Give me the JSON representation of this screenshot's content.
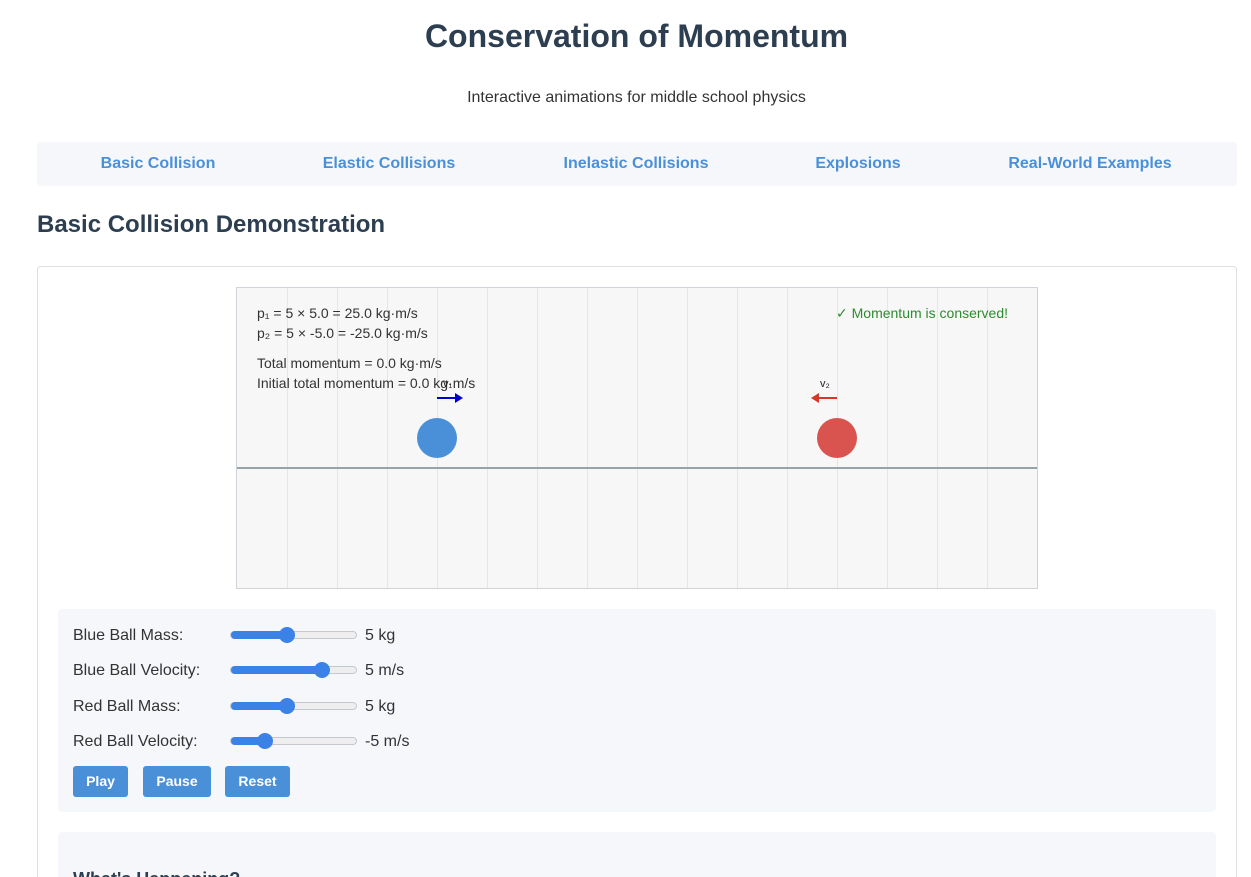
{
  "header": {
    "title": "Conservation of Momentum",
    "subtitle": "Interactive animations for middle school physics"
  },
  "nav": {
    "items": [
      {
        "label": "Basic Collision"
      },
      {
        "label": "Elastic Collisions"
      },
      {
        "label": "Inelastic Collisions"
      },
      {
        "label": "Explosions"
      },
      {
        "label": "Real-World Examples"
      }
    ]
  },
  "section": {
    "heading": "Basic Collision Demonstration"
  },
  "simulation": {
    "p1_text": "p₁ = 5 × 5.0 = 25.0 kg·m/s",
    "p2_text": "p₂ = 5 × -5.0 = -25.0 kg·m/s",
    "total_text": "Total momentum = 0.0 kg·m/s",
    "initial_total_text": "Initial total momentum = 0.0 kg·m/s",
    "status_text": "✓ Momentum is conserved!",
    "v1_label": "v₁",
    "v2_label": "v₂",
    "colors": {
      "blue_ball": "#4a90d9",
      "red_ball": "#d9534f",
      "v1_arrow": "#0000cc",
      "v2_arrow": "#d9352b",
      "status": "#2e8b2e"
    }
  },
  "controls": {
    "blue_mass": {
      "label": "Blue Ball Mass:",
      "value": "5 kg",
      "fraction": 0.45
    },
    "blue_velocity": {
      "label": "Blue Ball Velocity:",
      "value": "5 m/s",
      "fraction": 0.73
    },
    "red_mass": {
      "label": "Red Ball Mass:",
      "value": "5 kg",
      "fraction": 0.45
    },
    "red_velocity": {
      "label": "Red Ball Velocity:",
      "value": "-5 m/s",
      "fraction": 0.27
    },
    "play_label": "Play",
    "pause_label": "Pause",
    "reset_label": "Reset"
  },
  "explanation": {
    "heading": "What's Happening?"
  }
}
